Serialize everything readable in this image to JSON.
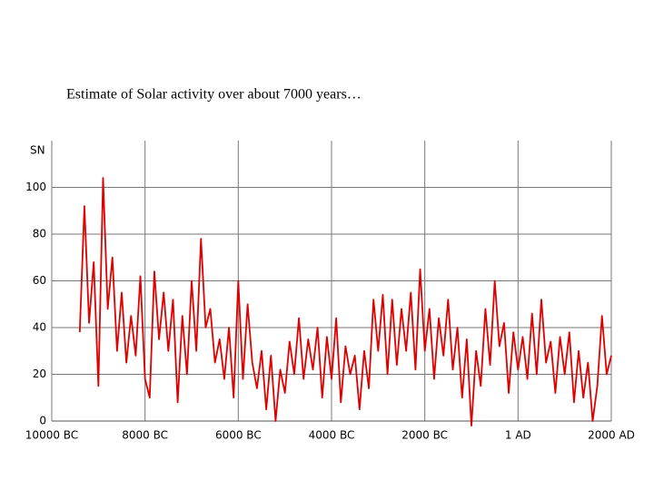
{
  "chart_data": {
    "type": "line",
    "title": "Estimate of Solar activity over about 7000 years…",
    "y_label": "SN",
    "x": [
      -9400,
      -9300,
      -9200,
      -9100,
      -9000,
      -8900,
      -8800,
      -8700,
      -8600,
      -8500,
      -8400,
      -8300,
      -8200,
      -8100,
      -8000,
      -7900,
      -7800,
      -7700,
      -7600,
      -7500,
      -7400,
      -7300,
      -7200,
      -7100,
      -7000,
      -6900,
      -6800,
      -6700,
      -6600,
      -6500,
      -6400,
      -6300,
      -6200,
      -6100,
      -6000,
      -5900,
      -5800,
      -5700,
      -5600,
      -5500,
      -5400,
      -5300,
      -5200,
      -5100,
      -5000,
      -4900,
      -4800,
      -4700,
      -4600,
      -4500,
      -4400,
      -4300,
      -4200,
      -4100,
      -4000,
      -3900,
      -3800,
      -3700,
      -3600,
      -3500,
      -3400,
      -3300,
      -3200,
      -3100,
      -3000,
      -2900,
      -2800,
      -2700,
      -2600,
      -2500,
      -2400,
      -2300,
      -2200,
      -2100,
      -2000,
      -1900,
      -1800,
      -1700,
      -1600,
      -1500,
      -1400,
      -1300,
      -1200,
      -1100,
      -1000,
      -900,
      -800,
      -700,
      -600,
      -500,
      -400,
      -300,
      -200,
      -100,
      0,
      100,
      200,
      300,
      400,
      500,
      600,
      700,
      800,
      900,
      1000,
      1100,
      1200,
      1300,
      1400,
      1500,
      1600,
      1700,
      1800,
      1900,
      2000
    ],
    "series": [
      {
        "name": "SN",
        "color": "#e00000",
        "values": [
          38,
          92,
          42,
          68,
          15,
          104,
          48,
          70,
          30,
          55,
          25,
          45,
          28,
          62,
          18,
          10,
          64,
          35,
          55,
          30,
          52,
          8,
          45,
          20,
          60,
          30,
          78,
          40,
          48,
          25,
          35,
          18,
          40,
          10,
          60,
          18,
          50,
          25,
          14,
          30,
          5,
          28,
          0,
          22,
          12,
          34,
          20,
          44,
          18,
          35,
          22,
          40,
          10,
          36,
          18,
          44,
          8,
          32,
          20,
          28,
          5,
          30,
          14,
          52,
          30,
          54,
          20,
          52,
          24,
          48,
          30,
          55,
          22,
          65,
          30,
          48,
          18,
          44,
          28,
          52,
          22,
          40,
          10,
          35,
          -2,
          30,
          15,
          48,
          24,
          60,
          32,
          42,
          12,
          38,
          22,
          36,
          18,
          46,
          20,
          52,
          25,
          34,
          12,
          36,
          20,
          38,
          8,
          30,
          10,
          25,
          0,
          15,
          45,
          20,
          28
        ]
      }
    ],
    "xlim": [
      -10000,
      2000
    ],
    "xticks": [
      {
        "value": -10000,
        "label": "10000 BC"
      },
      {
        "value": -8000,
        "label": "8000 BC"
      },
      {
        "value": -6000,
        "label": "6000 BC"
      },
      {
        "value": -4000,
        "label": "4000 BC"
      },
      {
        "value": -2000,
        "label": "2000 BC"
      },
      {
        "value": 0,
        "label": "1 AD"
      },
      {
        "value": 2000,
        "label": "2000 AD"
      }
    ],
    "ylim": [
      0,
      120
    ],
    "yticks": [
      0,
      20,
      40,
      60,
      80,
      100
    ],
    "grid": true
  }
}
